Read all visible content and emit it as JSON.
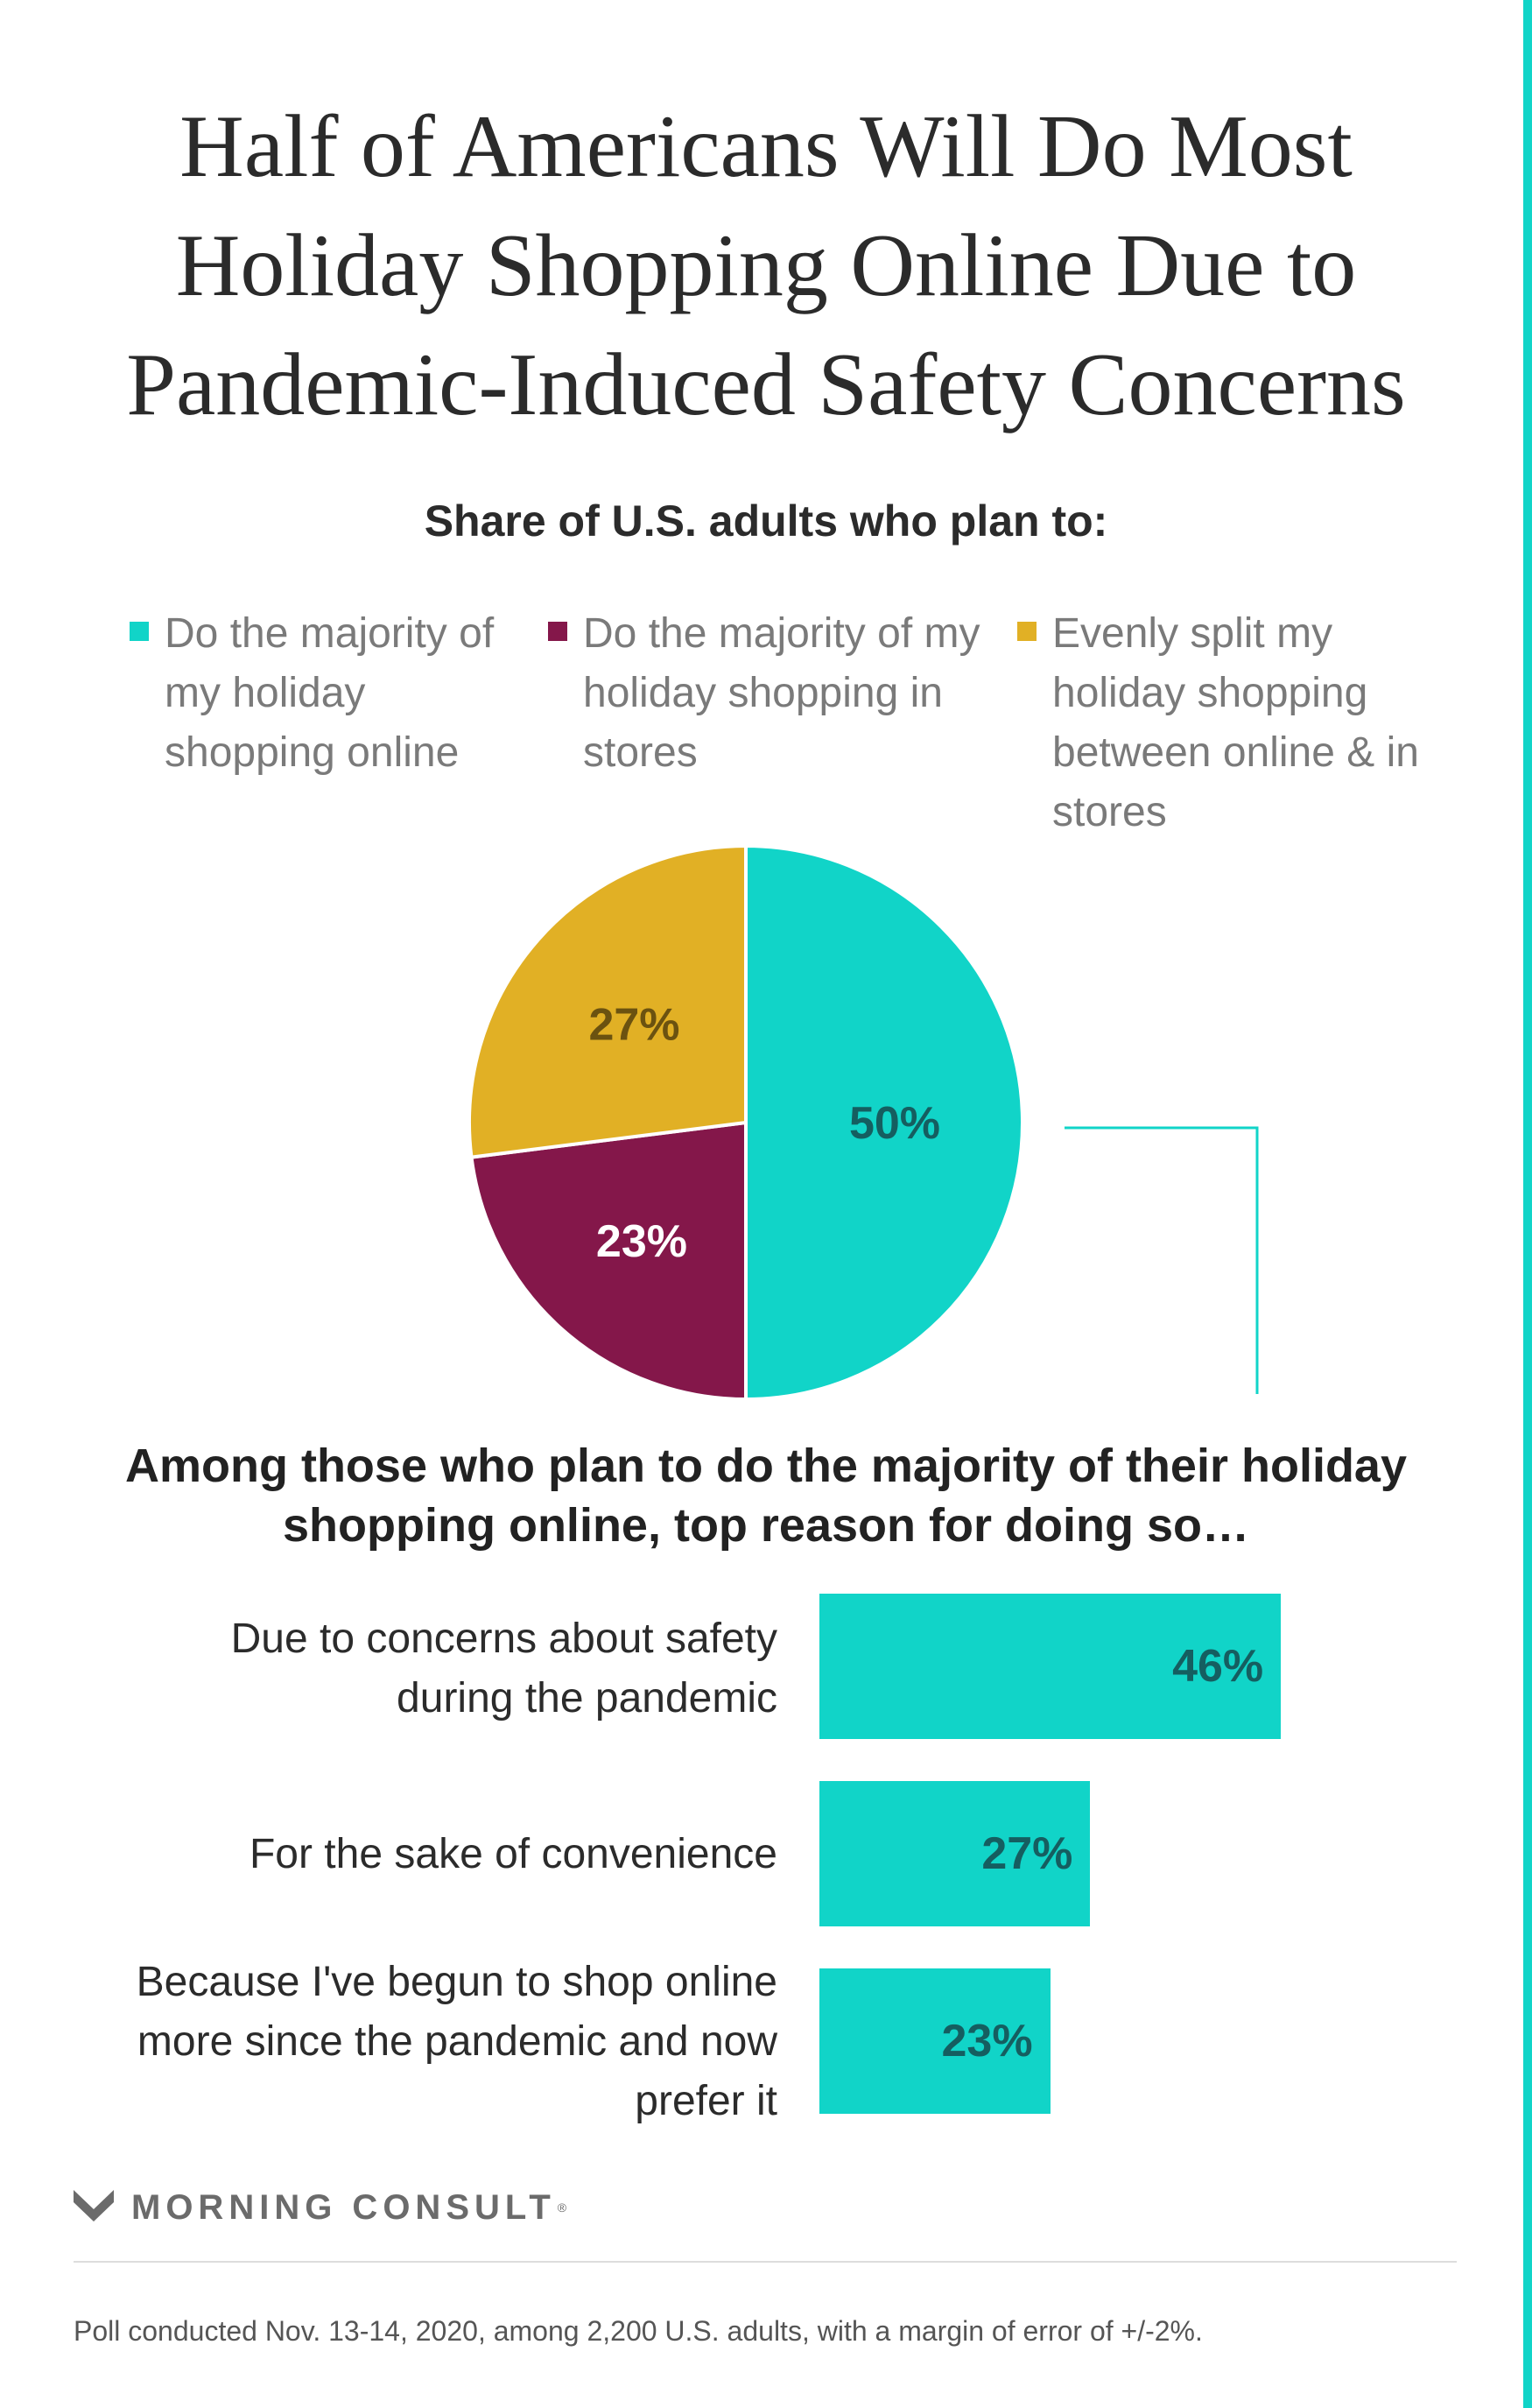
{
  "title": "Half of Americans Will Do Most Holiday Shopping Online Due to Pandemic-Induced Safety Concerns",
  "colors": {
    "accent": "#11d4c8",
    "teal_dark_text": "#155e60",
    "maroon": "#84174a",
    "gold": "#e1b025"
  },
  "chart_data": [
    {
      "type": "pie",
      "title": "Share of U.S. adults who plan to:",
      "legend_position": "top",
      "slices": [
        {
          "label": "Do the majority of my holiday shopping online",
          "value": 50,
          "value_label": "50%",
          "color": "#11d4c8"
        },
        {
          "label": "Do the majority of my holiday shopping in stores",
          "value": 23,
          "value_label": "23%",
          "color": "#84174a"
        },
        {
          "label": "Evenly split my holiday shopping between online & in stores",
          "value": 27,
          "value_label": "27%",
          "color": "#e1b025"
        }
      ]
    },
    {
      "type": "bar",
      "orientation": "horizontal",
      "title": "Among those who plan to do the majority of their holiday shopping online, top reason for doing so…",
      "categories": [
        "Due to concerns about safety during the pandemic",
        "For the sake of convenience",
        "Because I've begun to shop online more since the pandemic and now prefer it"
      ],
      "values": [
        46,
        27,
        23
      ],
      "value_labels": [
        "46%",
        "27%",
        "23%"
      ],
      "xlim": [
        0,
        50
      ],
      "grid": false
    }
  ],
  "brand": {
    "name": "MORNING CONSULT",
    "registered": "®",
    "logo_icon": "morning-consult-m-icon"
  },
  "footnote": "Poll conducted Nov. 13-14, 2020, among 2,200 U.S. adults, with a margin of error of +/-2%."
}
